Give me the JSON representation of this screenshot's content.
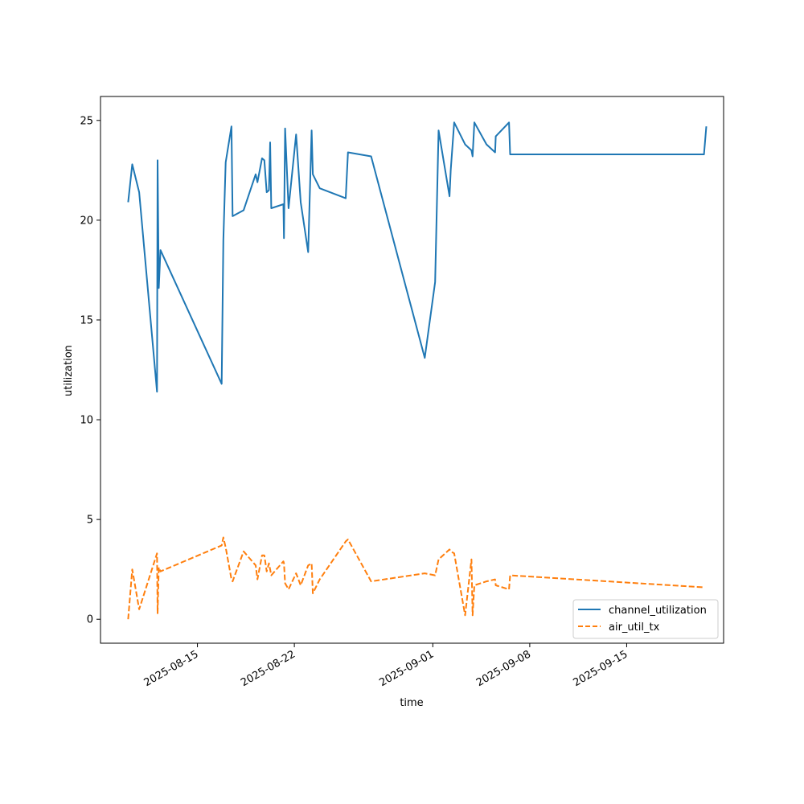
{
  "chart_data": {
    "type": "line",
    "xlabel": "time",
    "ylabel": "utilization",
    "xlim": [
      "2025-08-08",
      "2025-09-22"
    ],
    "ylim": [
      -1.2,
      26.2
    ],
    "x_ticks": [
      "2025-08-15",
      "2025-08-22",
      "2025-09-01",
      "2025-09-08",
      "2025-09-15"
    ],
    "y_ticks": [
      0,
      5,
      10,
      15,
      20,
      25
    ],
    "grid": false,
    "legend_position": "lower-right",
    "series": [
      {
        "name": "channel_utilization",
        "color": "#1f77b4",
        "dash": "solid",
        "points": [
          [
            "2025-08-10T00:00",
            20.9
          ],
          [
            "2025-08-10T07:00",
            22.8
          ],
          [
            "2025-08-10T19:00",
            21.4
          ],
          [
            "2025-08-12T02:00",
            11.4
          ],
          [
            "2025-08-12T03:00",
            23.0
          ],
          [
            "2025-08-12T05:00",
            16.6
          ],
          [
            "2025-08-12T08:00",
            18.5
          ],
          [
            "2025-08-16T18:00",
            11.8
          ],
          [
            "2025-08-16T21:00",
            19.0
          ],
          [
            "2025-08-17T01:00",
            22.9
          ],
          [
            "2025-08-17T11:00",
            24.7
          ],
          [
            "2025-08-17T13:00",
            20.2
          ],
          [
            "2025-08-18T08:00",
            20.5
          ],
          [
            "2025-08-19T05:00",
            22.3
          ],
          [
            "2025-08-19T08:00",
            21.9
          ],
          [
            "2025-08-19T16:00",
            23.1
          ],
          [
            "2025-08-19T20:00",
            23.0
          ],
          [
            "2025-08-20T00:00",
            21.4
          ],
          [
            "2025-08-20T04:00",
            21.5
          ],
          [
            "2025-08-20T06:00",
            23.9
          ],
          [
            "2025-08-20T08:00",
            20.6
          ],
          [
            "2025-08-21T05:00",
            20.8
          ],
          [
            "2025-08-21T06:00",
            19.1
          ],
          [
            "2025-08-21T08:00",
            24.6
          ],
          [
            "2025-08-21T14:00",
            20.6
          ],
          [
            "2025-08-22T03:00",
            24.3
          ],
          [
            "2025-08-22T11:00",
            20.9
          ],
          [
            "2025-08-23T00:00",
            18.4
          ],
          [
            "2025-08-23T06:00",
            24.5
          ],
          [
            "2025-08-23T08:00",
            22.3
          ],
          [
            "2025-08-23T20:00",
            21.6
          ],
          [
            "2025-08-25T17:00",
            21.1
          ],
          [
            "2025-08-25T21:00",
            23.4
          ],
          [
            "2025-08-27T13:00",
            23.2
          ],
          [
            "2025-08-31T10:00",
            13.1
          ],
          [
            "2025-09-01T04:00",
            16.9
          ],
          [
            "2025-09-01T10:00",
            24.5
          ],
          [
            "2025-09-02T05:00",
            21.2
          ],
          [
            "2025-09-02T07:00",
            22.5
          ],
          [
            "2025-09-02T13:00",
            24.9
          ],
          [
            "2025-09-03T08:00",
            23.8
          ],
          [
            "2025-09-03T19:00",
            23.5
          ],
          [
            "2025-09-03T21:00",
            23.2
          ],
          [
            "2025-09-04T00:00",
            24.9
          ],
          [
            "2025-09-04T21:00",
            23.8
          ],
          [
            "2025-09-05T12:00",
            23.4
          ],
          [
            "2025-09-05T13:00",
            24.2
          ],
          [
            "2025-09-06T12:00",
            24.9
          ],
          [
            "2025-09-06T14:00",
            23.3
          ],
          [
            "2025-09-20T14:00",
            23.3
          ],
          [
            "2025-09-20T18:00",
            24.7
          ]
        ]
      },
      {
        "name": "air_util_tx",
        "color": "#ff7f0e",
        "dash": "dashed",
        "points": [
          [
            "2025-08-10T00:00",
            0.0
          ],
          [
            "2025-08-10T07:00",
            2.5
          ],
          [
            "2025-08-10T19:00",
            0.5
          ],
          [
            "2025-08-12T02:00",
            3.3
          ],
          [
            "2025-08-12T03:00",
            0.3
          ],
          [
            "2025-08-12T05:00",
            2.6
          ],
          [
            "2025-08-12T08:00",
            2.4
          ],
          [
            "2025-08-16T18:00",
            3.7
          ],
          [
            "2025-08-16T21:00",
            4.1
          ],
          [
            "2025-08-17T01:00",
            3.6
          ],
          [
            "2025-08-17T11:00",
            2.0
          ],
          [
            "2025-08-17T13:00",
            1.9
          ],
          [
            "2025-08-18T08:00",
            3.4
          ],
          [
            "2025-08-19T05:00",
            2.7
          ],
          [
            "2025-08-19T08:00",
            2.0
          ],
          [
            "2025-08-19T16:00",
            3.2
          ],
          [
            "2025-08-19T20:00",
            3.2
          ],
          [
            "2025-08-20T00:00",
            2.4
          ],
          [
            "2025-08-20T04:00",
            2.8
          ],
          [
            "2025-08-20T06:00",
            2.5
          ],
          [
            "2025-08-20T08:00",
            2.2
          ],
          [
            "2025-08-21T05:00",
            2.9
          ],
          [
            "2025-08-21T06:00",
            2.8
          ],
          [
            "2025-08-21T08:00",
            1.8
          ],
          [
            "2025-08-21T14:00",
            1.5
          ],
          [
            "2025-08-22T03:00",
            2.3
          ],
          [
            "2025-08-22T11:00",
            1.7
          ],
          [
            "2025-08-23T00:00",
            2.7
          ],
          [
            "2025-08-23T06:00",
            2.8
          ],
          [
            "2025-08-23T08:00",
            1.3
          ],
          [
            "2025-08-23T20:00",
            2.0
          ],
          [
            "2025-08-25T17:00",
            3.9
          ],
          [
            "2025-08-25T21:00",
            4.0
          ],
          [
            "2025-08-27T13:00",
            1.9
          ],
          [
            "2025-08-31T10:00",
            2.3
          ],
          [
            "2025-09-01T04:00",
            2.2
          ],
          [
            "2025-09-01T10:00",
            3.0
          ],
          [
            "2025-09-02T05:00",
            3.5
          ],
          [
            "2025-09-02T07:00",
            3.4
          ],
          [
            "2025-09-02T13:00",
            3.3
          ],
          [
            "2025-09-03T08:00",
            0.2
          ],
          [
            "2025-09-03T19:00",
            3.0
          ],
          [
            "2025-09-03T21:00",
            0.2
          ],
          [
            "2025-09-04T00:00",
            1.7
          ],
          [
            "2025-09-04T21:00",
            1.9
          ],
          [
            "2025-09-05T12:00",
            2.0
          ],
          [
            "2025-09-05T13:00",
            1.7
          ],
          [
            "2025-09-06T12:00",
            1.5
          ],
          [
            "2025-09-06T14:00",
            2.2
          ],
          [
            "2025-09-20T14:00",
            1.6
          ]
        ]
      }
    ]
  }
}
